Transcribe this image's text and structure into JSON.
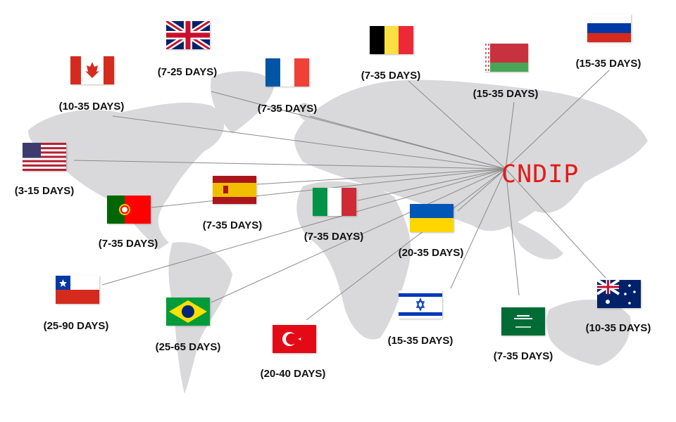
{
  "hub": {
    "label": "CNDIP",
    "color": "#e41b1b"
  },
  "routes": [
    {
      "flag": "united-kingdom",
      "days": "(7-25 DAYS)"
    },
    {
      "flag": "canada",
      "days": "(10-35 DAYS)"
    },
    {
      "flag": "france",
      "days": "(7-35 DAYS)"
    },
    {
      "flag": "belgium",
      "days": "(7-35 DAYS)"
    },
    {
      "flag": "belarus",
      "days": "(15-35 DAYS)"
    },
    {
      "flag": "russia",
      "days": "(15-35 DAYS)"
    },
    {
      "flag": "united-states",
      "days": "(3-15 DAYS)"
    },
    {
      "flag": "spain",
      "days": "(7-35 DAYS)"
    },
    {
      "flag": "portugal",
      "days": "(7-35 DAYS)"
    },
    {
      "flag": "italy",
      "days": "(7-35 DAYS)"
    },
    {
      "flag": "ukraine",
      "days": "(20-35 DAYS)"
    },
    {
      "flag": "chile",
      "days": "(25-90 DAYS)"
    },
    {
      "flag": "brazil",
      "days": "(25-65 DAYS)"
    },
    {
      "flag": "turkey",
      "days": "(20-40 DAYS)"
    },
    {
      "flag": "israel",
      "days": "(15-35 DAYS)"
    },
    {
      "flag": "saudi-arabia",
      "days": "(7-35 DAYS)"
    },
    {
      "flag": "australia",
      "days": "(10-35 DAYS)"
    }
  ]
}
